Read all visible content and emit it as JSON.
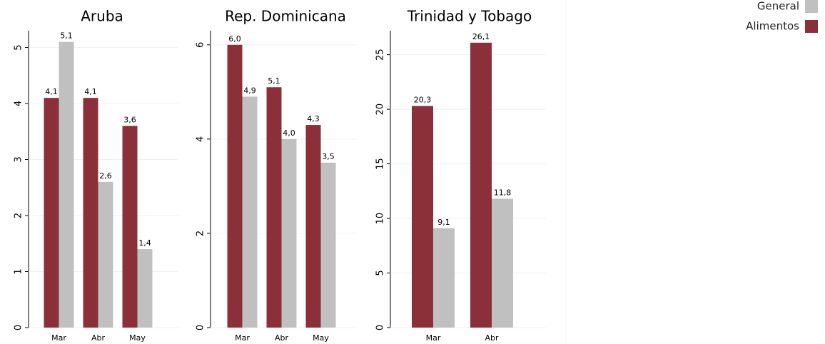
{
  "chart_data": [
    {
      "type": "bar",
      "title": "Aruba",
      "categories": [
        "Mar",
        "Abr",
        "May"
      ],
      "series": [
        {
          "name": "General",
          "color": "#c0c0c0",
          "values": [
            5.1,
            2.6,
            1.4
          ],
          "value_labels": [
            "5,1",
            "2,6",
            "1,4"
          ]
        },
        {
          "name": "Alimentos",
          "color": "#8b3039",
          "values": [
            4.1,
            4.1,
            3.6
          ],
          "value_labels": [
            "4,1",
            "4,1",
            "3,6"
          ]
        }
      ],
      "ylim": [
        0,
        5.3
      ],
      "yticks": [
        0,
        1,
        2,
        3,
        4,
        5
      ],
      "grid": true
    },
    {
      "type": "bar",
      "title": "Rep. Dominicana",
      "categories": [
        "Mar",
        "Abr",
        "May"
      ],
      "series": [
        {
          "name": "General",
          "color": "#c0c0c0",
          "values": [
            4.9,
            4.0,
            3.5
          ],
          "value_labels": [
            "4,9",
            "4,0",
            "3,5"
          ]
        },
        {
          "name": "Alimentos",
          "color": "#8b3039",
          "values": [
            6.0,
            5.1,
            4.3
          ],
          "value_labels": [
            "6,0",
            "5,1",
            "4,3"
          ]
        }
      ],
      "ylim": [
        0,
        6.3
      ],
      "yticks": [
        0,
        2,
        4,
        6
      ],
      "grid": true
    },
    {
      "type": "bar",
      "title": "Trinidad y Tobago",
      "categories": [
        "Mar",
        "Abr"
      ],
      "series": [
        {
          "name": "General",
          "color": "#c0c0c0",
          "values": [
            9.1,
            11.8
          ],
          "value_labels": [
            "9,1",
            "11,8"
          ]
        },
        {
          "name": "Alimentos",
          "color": "#8b3039",
          "values": [
            20.3,
            26.1
          ],
          "value_labels": [
            "20,3",
            "26,1"
          ]
        }
      ],
      "ylim": [
        0,
        27.2
      ],
      "yticks": [
        0,
        5,
        10,
        15,
        20,
        25
      ],
      "grid": true
    }
  ]
}
